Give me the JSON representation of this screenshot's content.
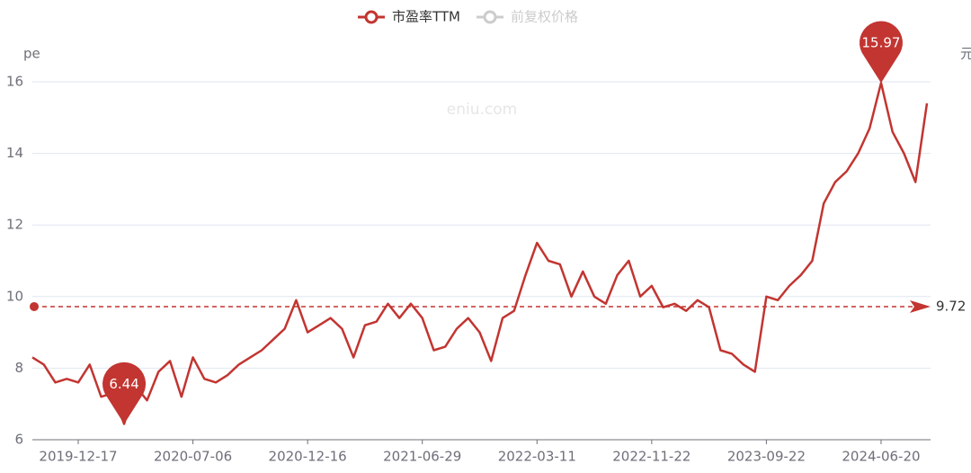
{
  "chart_data": {
    "type": "line",
    "legend_inactive": [
      "前复权价格"
    ],
    "y_axis_label": "pe",
    "y2_axis_label": "元",
    "watermark": "eniu.com",
    "categories": [
      null,
      null,
      null,
      null,
      "2019-12-17",
      null,
      null,
      null,
      null,
      null,
      null,
      null,
      null,
      null,
      "2020-07-06",
      null,
      null,
      null,
      null,
      null,
      null,
      null,
      null,
      null,
      "2020-12-16",
      null,
      null,
      null,
      null,
      null,
      null,
      null,
      null,
      null,
      "2021-06-29",
      null,
      null,
      null,
      null,
      null,
      null,
      null,
      null,
      null,
      "2022-03-11",
      null,
      null,
      null,
      null,
      null,
      null,
      null,
      null,
      null,
      "2022-11-22",
      null,
      null,
      null,
      null,
      null,
      null,
      null,
      null,
      null,
      "2023-09-22",
      null,
      null,
      null,
      null,
      null,
      null,
      null,
      null,
      null,
      "2024-06-20",
      null,
      null,
      null,
      null
    ],
    "series": [
      {
        "name": "市盈率TTM",
        "color": "#c23531",
        "values": [
          8.3,
          8.1,
          7.6,
          7.7,
          7.6,
          8.1,
          7.2,
          7.3,
          6.44,
          7.5,
          7.1,
          7.9,
          8.2,
          7.2,
          8.3,
          7.7,
          7.6,
          7.8,
          8.1,
          8.3,
          8.5,
          8.8,
          9.1,
          9.9,
          9.0,
          9.2,
          9.4,
          9.1,
          8.3,
          9.2,
          9.3,
          9.8,
          9.4,
          9.8,
          9.4,
          8.5,
          8.6,
          9.1,
          9.4,
          9.0,
          8.2,
          9.4,
          9.6,
          10.6,
          11.5,
          11.0,
          10.9,
          10.0,
          10.7,
          10.0,
          9.8,
          10.6,
          11.0,
          10.0,
          10.3,
          9.7,
          9.8,
          9.6,
          9.9,
          9.7,
          8.5,
          8.4,
          8.1,
          7.9,
          10.0,
          9.9,
          10.3,
          10.6,
          11.0,
          12.6,
          13.2,
          13.5,
          14.0,
          14.7,
          15.97,
          14.6,
          14.0,
          13.2,
          15.4
        ]
      }
    ],
    "max": 15.97,
    "min": 6.44,
    "average": 9.72,
    "ylim": [
      6,
      16
    ],
    "yticks": [
      6,
      8,
      10,
      12,
      14,
      16
    ],
    "grid": true
  }
}
